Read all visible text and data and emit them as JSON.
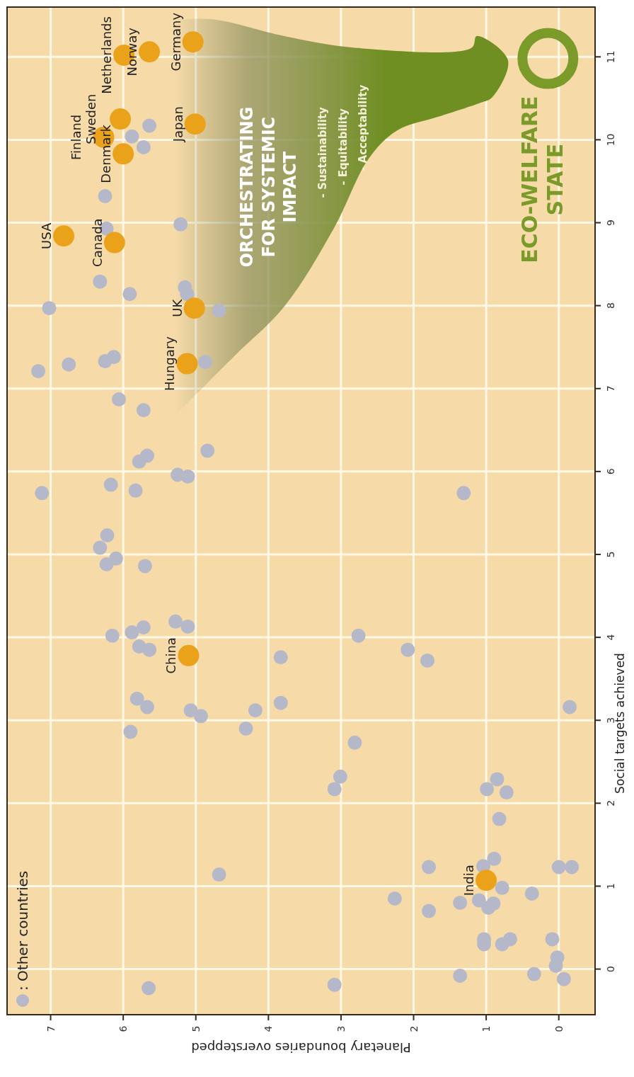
{
  "chart_data": {
    "type": "scatter",
    "xlabel": "Planetary boundaries overstepped",
    "ylabel": "Social targets achieved",
    "xlim": [
      7.6,
      -0.5
    ],
    "ylim": [
      -0.55,
      11.6
    ],
    "xticks": [
      0,
      1,
      2,
      3,
      4,
      5,
      6,
      7
    ],
    "yticks": [
      0,
      1,
      2,
      3,
      4,
      5,
      6,
      7,
      8,
      9,
      10,
      11
    ],
    "grid": true,
    "legend": "bottom left",
    "marker": "circle",
    "series": [
      {
        "name": ": Other countries",
        "color": "#b4b8c8",
        "values": [
          10.17,
          10.04,
          9.91,
          9.32,
          8.98,
          8.93,
          8.29,
          8.14,
          8.22,
          8.14,
          7.94,
          7.97,
          7.29,
          7.33,
          7.38,
          7.21,
          7.32,
          6.87,
          6.74,
          6.25,
          6.12,
          6.19,
          5.96,
          5.94,
          5.74,
          5.84,
          5.77,
          5.23,
          5.08,
          4.88,
          4.95,
          4.86,
          4.19,
          4.13,
          4.02,
          4.06,
          4.12,
          3.89,
          3.85,
          3.76,
          3.26,
          3.16,
          3.12,
          3.05,
          3.12,
          2.9,
          3.21,
          2.86,
          1.14,
          -0.23,
          5.74,
          4.02,
          3.85,
          3.72,
          3.16,
          2.73,
          2.32,
          2.17,
          2.29,
          2.17,
          2.13,
          1.81,
          1.23,
          1.33,
          1.24,
          1.23,
          1.23,
          0.98,
          0.91,
          0.85,
          0.8,
          0.83,
          0.74,
          0.79,
          0.7,
          0.36,
          0.3,
          0.3,
          0.36,
          0.36,
          0.14,
          0.04,
          -0.12,
          -0.06,
          -0.08,
          -0.19
        ],
        "x": [
          5.64,
          5.88,
          5.72,
          6.25,
          5.21,
          6.23,
          6.32,
          5.91,
          5.15,
          5.12,
          4.68,
          7.02,
          6.75,
          6.25,
          6.13,
          7.17,
          4.87,
          6.06,
          5.72,
          4.84,
          5.78,
          5.67,
          5.25,
          5.11,
          7.12,
          6.17,
          5.83,
          6.22,
          6.32,
          6.23,
          6.1,
          5.7,
          5.28,
          5.11,
          6.15,
          5.88,
          5.72,
          5.78,
          5.64,
          3.83,
          5.81,
          5.67,
          5.07,
          4.93,
          4.18,
          4.31,
          3.83,
          5.9,
          4.68,
          5.65,
          1.31,
          2.76,
          2.08,
          1.81,
          -0.15,
          2.81,
          3.01,
          3.09,
          0.85,
          0.99,
          0.72,
          0.82,
          1.79,
          0.89,
          1.04,
          0,
          -0.18,
          0.78,
          0.37,
          2.26,
          1.36,
          1.1,
          0.97,
          0.9,
          1.79,
          1.03,
          1.03,
          0.78,
          0.67,
          0.09,
          0.02,
          0.04,
          -0.07,
          0.34,
          1.36,
          3.09
        ]
      },
      {
        "color": "#e9a21a",
        "values": [
          8.84,
          8.76,
          10.03,
          10.25,
          9.83,
          11.02,
          11.06,
          11.18,
          10.19,
          7.97,
          7.3,
          3.78,
          1.07
        ],
        "x": [
          6.82,
          6.12,
          6.27,
          6.04,
          6.0,
          5.99,
          5.64,
          5.04,
          5.01,
          5.02,
          5.12,
          5.1,
          1.0
        ]
      }
    ],
    "annotations": [
      "ORCHESTRATING",
      "FOR SYSTEMIC",
      "IMPACT",
      "- Sustainability",
      "- Equitability",
      "- Acceptability",
      "ECO-WELFARE",
      "STATE",
      {
        "text": "USA",
        "x": 6.82,
        "y": 8.84
      },
      {
        "text": "Canada",
        "x": 6.12,
        "y": 8.76
      },
      {
        "text": "Denmark",
        "x": 6.0,
        "y": 9.83
      },
      {
        "text": "Sweden",
        "x": 6.04,
        "y": 10.25
      },
      {
        "text": "Finland",
        "x": 6.27,
        "y": 10.03
      },
      {
        "text": "Netherlands",
        "x": 5.99,
        "y": 11.02
      },
      {
        "text": "Norway",
        "x": 5.64,
        "y": 11.06
      },
      {
        "text": "Germany",
        "x": 5.04,
        "y": 11.18
      },
      {
        "text": "Japan",
        "x": 5.01,
        "y": 10.19
      },
      {
        "text": "UK",
        "x": 5.02,
        "y": 7.97
      },
      {
        "text": "Hungary",
        "x": 5.12,
        "y": 7.3
      },
      {
        "text": "China",
        "x": 5.1,
        "y": 3.78
      },
      {
        "text": "India",
        "x": 1.0,
        "y": 1.07
      }
    ]
  }
}
